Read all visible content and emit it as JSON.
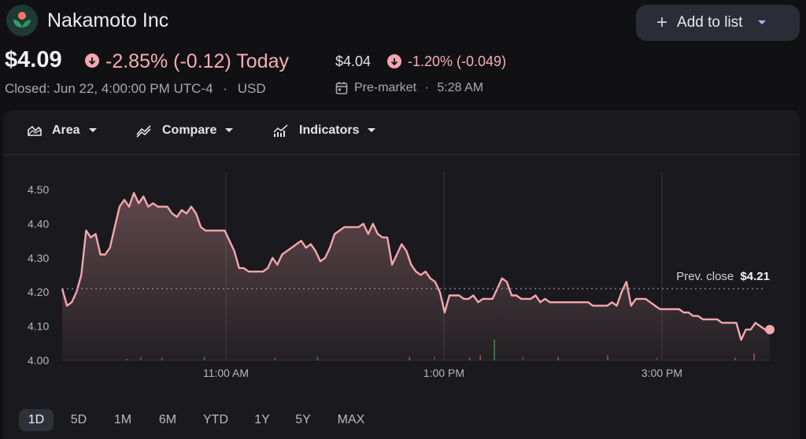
{
  "header": {
    "company": "Nakamoto Inc",
    "add_to_list_label": "Add to list",
    "price": "$4.09",
    "change_text": "-2.85% (-0.12) Today",
    "closed_text": "Closed: Jun 22, 4:00:00 PM UTC-4",
    "currency": "USD",
    "premarket_price": "$4.04",
    "premarket_change": "-1.20% (-0.049)",
    "premarket_label": "Pre-market",
    "premarket_time": "5:28 AM",
    "separator": "·",
    "down_color": "#f4a7ad"
  },
  "toolbar": {
    "area_label": "Area",
    "compare_label": "Compare",
    "indicators_label": "Indicators"
  },
  "chart_data": {
    "type": "area",
    "y_ticks": [
      "4.50",
      "4.40",
      "4.30",
      "4.20",
      "4.10",
      "4.00"
    ],
    "ylim": [
      4.0,
      4.5
    ],
    "x_ticks": [
      "11:00 AM",
      "1:00 PM",
      "3:00 PM"
    ],
    "prev_close_label": "Prev. close",
    "prev_close_value": "$4.21",
    "prev_close": 4.21,
    "line_color": "#f4a7ad",
    "series": [
      {
        "values": [
          4.21,
          4.16,
          4.17,
          4.2,
          4.25,
          4.38,
          4.36,
          4.37,
          4.31,
          4.31,
          4.33,
          4.39,
          4.45,
          4.47,
          4.45,
          4.49,
          4.46,
          4.48,
          4.45,
          4.46,
          4.45,
          4.45,
          4.45,
          4.43,
          4.42,
          4.44,
          4.43,
          4.45,
          4.43,
          4.39,
          4.38,
          4.38,
          4.38,
          4.38,
          4.38,
          4.35,
          4.32,
          4.27,
          4.27,
          4.26,
          4.26,
          4.26,
          4.26,
          4.27,
          4.3,
          4.28,
          4.31,
          4.32,
          4.33,
          4.34,
          4.35,
          4.33,
          4.34,
          4.32,
          4.29,
          4.3,
          4.33,
          4.37,
          4.38,
          4.39,
          4.39,
          4.39,
          4.39,
          4.4,
          4.37,
          4.4,
          4.37,
          4.36,
          4.36,
          4.28,
          4.31,
          4.34,
          4.32,
          4.28,
          4.26,
          4.25,
          4.26,
          4.24,
          4.23,
          4.2,
          4.14,
          4.19,
          4.19,
          4.19,
          4.18,
          4.18,
          4.19,
          4.17,
          4.18,
          4.18,
          4.18,
          4.21,
          4.24,
          4.23,
          4.19,
          4.19,
          4.18,
          4.18,
          4.18,
          4.19,
          4.17,
          4.18,
          4.17,
          4.17,
          4.17,
          4.17,
          4.17,
          4.17,
          4.17,
          4.17,
          4.17,
          4.16,
          4.16,
          4.16,
          4.16,
          4.17,
          4.16,
          4.2,
          4.23,
          4.16,
          4.18,
          4.18,
          4.18,
          4.17,
          4.16,
          4.15,
          4.15,
          4.15,
          4.15,
          4.15,
          4.14,
          4.14,
          4.13,
          4.13,
          4.12,
          4.12,
          4.12,
          4.12,
          4.11,
          4.11,
          4.11,
          4.11,
          4.06,
          4.09,
          4.09,
          4.11,
          4.1,
          4.09,
          4.09
        ]
      }
    ],
    "volume_bars": [
      {
        "x": 0.09,
        "h": 0.01,
        "color": "#9a4a4f"
      },
      {
        "x": 0.11,
        "h": 0.02,
        "color": "#7a3a3f"
      },
      {
        "x": 0.14,
        "h": 0.015,
        "color": "#9a4a4f"
      },
      {
        "x": 0.2,
        "h": 0.02,
        "color": "#3f7a55"
      },
      {
        "x": 0.3,
        "h": 0.015,
        "color": "#9a4a4f"
      },
      {
        "x": 0.36,
        "h": 0.02,
        "color": "#3f7a55"
      },
      {
        "x": 0.49,
        "h": 0.02,
        "color": "#9a4a4f"
      },
      {
        "x": 0.525,
        "h": 0.02,
        "color": "#7a3a3f"
      },
      {
        "x": 0.575,
        "h": 0.015,
        "color": "#9a4a4f"
      },
      {
        "x": 0.59,
        "h": 0.03,
        "color": "#9a4a4f"
      },
      {
        "x": 0.61,
        "h": 0.12,
        "color": "#3f7a55"
      },
      {
        "x": 0.65,
        "h": 0.02,
        "color": "#7a3a3f"
      },
      {
        "x": 0.7,
        "h": 0.02,
        "color": "#9a4a4f"
      },
      {
        "x": 0.77,
        "h": 0.03,
        "color": "#9a4a4f"
      },
      {
        "x": 0.84,
        "h": 0.015,
        "color": "#7a3a3f"
      },
      {
        "x": 0.95,
        "h": 0.015,
        "color": "#9a4a4f"
      },
      {
        "x": 0.977,
        "h": 0.04,
        "color": "#9a4a4f"
      }
    ]
  },
  "ranges": {
    "items": [
      "1D",
      "5D",
      "1M",
      "6M",
      "YTD",
      "1Y",
      "5Y",
      "MAX"
    ],
    "active": "1D"
  }
}
